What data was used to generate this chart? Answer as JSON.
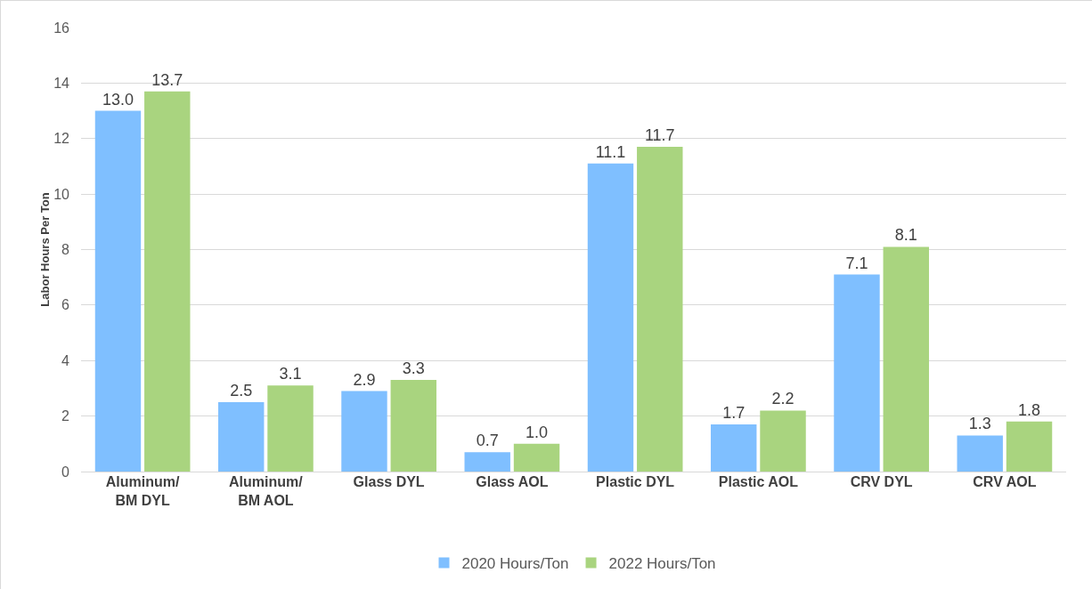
{
  "chart_data": {
    "type": "bar",
    "ylabel": "Labor Hours Per Ton",
    "categories": [
      "Aluminum/\nBM DYL",
      "Aluminum/\nBM AOL",
      "Glass DYL",
      "Glass AOL",
      "Plastic DYL",
      "Plastic AOL",
      "CRV DYL",
      "CRV AOL"
    ],
    "series": [
      {
        "name": "2020 Hours/Ton",
        "color": "#7fbfff",
        "values": [
          13,
          2.5,
          2.9,
          0.7,
          11.1,
          1.7,
          7.1,
          1.3
        ],
        "value_labels": [
          "13.0",
          "2.5",
          "2.9",
          "0.7",
          "11.1",
          "1.7",
          "7.1",
          "1.3"
        ]
      },
      {
        "name": "2022 Hours/Ton",
        "color": "#a9d47f",
        "values": [
          13.7,
          3.1,
          3.3,
          1,
          11.7,
          2.2,
          8.1,
          1.8
        ],
        "value_labels": [
          "13.7",
          "3.1",
          "3.3",
          "1.0",
          "11.7",
          "2.2",
          "8.1",
          "1.8"
        ]
      }
    ],
    "ylim": [
      0,
      16
    ],
    "yticks": [
      0,
      2,
      4,
      6,
      8,
      10,
      12,
      14,
      16
    ],
    "grid": "y",
    "legend": "bottom"
  }
}
